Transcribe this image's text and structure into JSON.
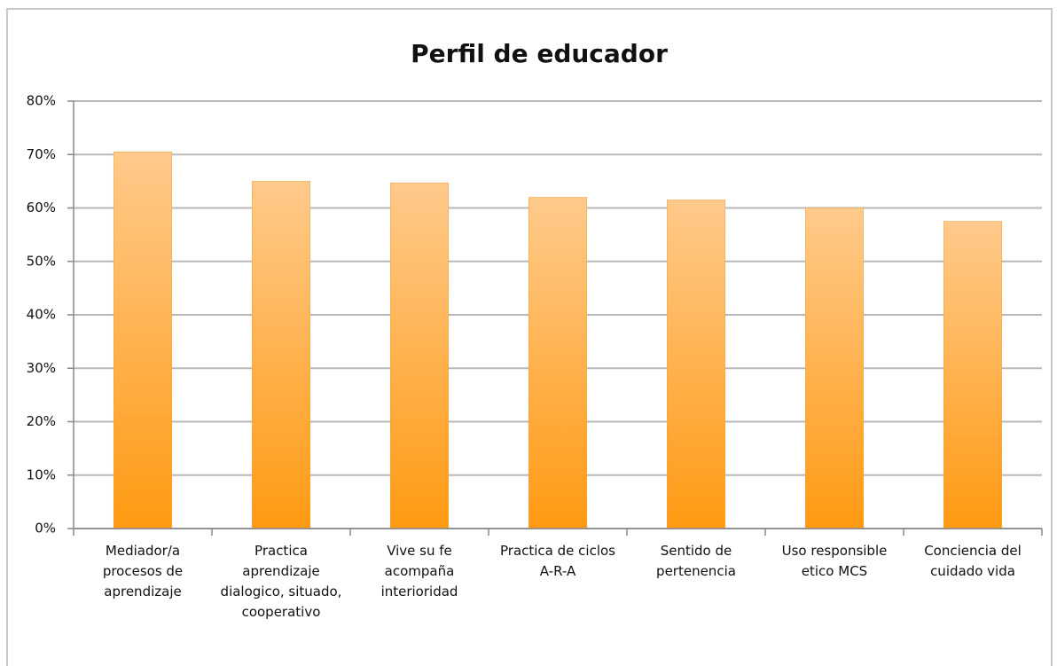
{
  "chart_data": {
    "type": "bar",
    "title": "Perfil de educador",
    "categories": [
      "Mediador/a procesos de aprendizaje",
      "Practica aprendizaje dialogico, situado, cooperativo",
      "Vive su fe acompaña interioridad",
      "Practica de ciclos A-R-A",
      "Sentido de pertenencia",
      "Uso responsible etico MCS",
      "Conciencia del cuidado vida"
    ],
    "values": [
      70.5,
      65,
      64.7,
      62,
      61.5,
      60,
      57.5
    ],
    "color": "#ff9f1c",
    "ylim": [
      0,
      80
    ],
    "yticks": [
      {
        "value": 0,
        "label": "0%"
      },
      {
        "value": 10,
        "label": "10%"
      },
      {
        "value": 20,
        "label": "20%"
      },
      {
        "value": 30,
        "label": "30%"
      },
      {
        "value": 40,
        "label": "40%"
      },
      {
        "value": 50,
        "label": "50%"
      },
      {
        "value": 60,
        "label": "60%"
      },
      {
        "value": 70,
        "label": "70%"
      },
      {
        "value": 80,
        "label": "80%"
      }
    ],
    "grid": true
  }
}
